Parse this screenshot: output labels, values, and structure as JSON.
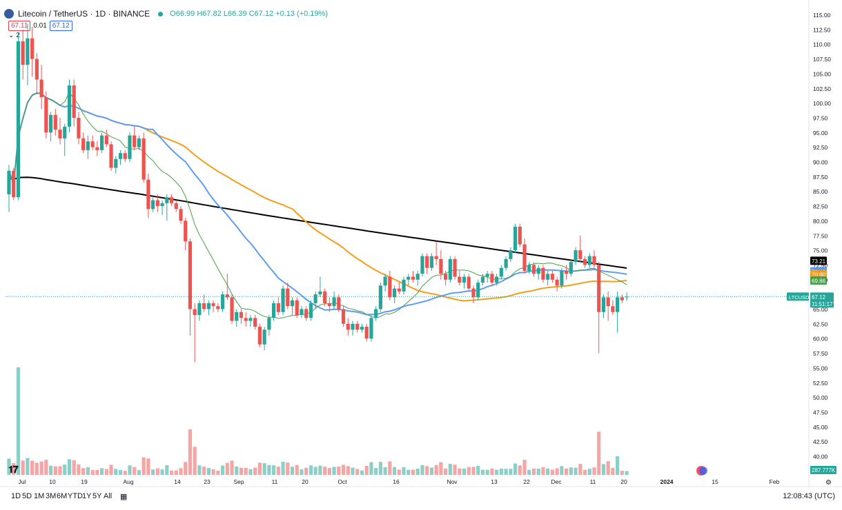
{
  "header": {
    "title": "Litecoin / TetherUS · 1D · BINANCE",
    "ohlc_open": "O66.99",
    "ohlc_high": "H67.82",
    "ohlc_low": "L66.39",
    "ohlc_close": "C67.12",
    "ohlc_change": "+0.13 (+0.19%)",
    "bid": "67.11",
    "spread": "0.01",
    "ask": "67.12",
    "indicators_toggle": "2"
  },
  "price_axis": {
    "ticks": [
      "115.00",
      "112.50",
      "110.00",
      "107.50",
      "105.00",
      "102.50",
      "100.00",
      "97.50",
      "95.00",
      "92.50",
      "90.00",
      "87.50",
      "85.00",
      "82.50",
      "80.00",
      "77.50",
      "75.00",
      "72.50",
      "70.00",
      "67.50",
      "65.00",
      "62.50",
      "60.00",
      "57.50",
      "55.00",
      "52.50",
      "50.00",
      "47.50",
      "45.00",
      "42.50",
      "40.00"
    ],
    "ma_tags": [
      {
        "value": "73.21",
        "color": "#000000"
      },
      {
        "value": "71.41",
        "color": "#5b9cf6"
      },
      {
        "value": "70.90",
        "color": "#f59d16"
      },
      {
        "value": "69.86",
        "color": "#43a047"
      }
    ],
    "symbol_tag": "LTCUSDT",
    "price_tag": "67.12",
    "countdown_tag": "11:51:17",
    "volume_tag": "287.777K"
  },
  "time_axis": {
    "labels": [
      "Jul",
      "10",
      "19",
      "Aug",
      "14",
      "23",
      "Sep",
      "11",
      "20",
      "Oct",
      "16",
      "Nov",
      "13",
      "22",
      "Dec",
      "11",
      "20",
      "2024",
      "15",
      "Feb"
    ]
  },
  "bottom_toolbar": {
    "timeframes": [
      "1D",
      "5D",
      "1M",
      "3M",
      "6M",
      "YTD",
      "1Y",
      "5Y",
      "All"
    ],
    "clock": "12:08:43 (UTC)"
  },
  "colors": {
    "up": "#26a69a",
    "down": "#ef5350",
    "ma_black": "#000000",
    "ma_orange": "#f59d16",
    "ma_blue": "#5b9cf6",
    "ma_green": "#43a047"
  },
  "chart_data": {
    "type": "candlestick",
    "symbol": "LTCUSDT",
    "interval": "1D",
    "ylim": [
      40,
      115
    ],
    "candles": [
      [
        84.5,
        89.5,
        81.5,
        88.5
      ],
      [
        88.5,
        89.0,
        83.5,
        84.0
      ],
      [
        84.0,
        112.0,
        83.5,
        110.5
      ],
      [
        110.5,
        112.5,
        104.0,
        106.5
      ],
      [
        106.5,
        113.5,
        103.0,
        111.0
      ],
      [
        111.0,
        113.0,
        104.5,
        107.5
      ],
      [
        107.5,
        108.5,
        101.5,
        104.0
      ],
      [
        104.0,
        106.5,
        99.0,
        101.0
      ],
      [
        101.0,
        102.0,
        94.0,
        95.0
      ],
      [
        95.0,
        98.5,
        93.5,
        98.0
      ],
      [
        98.0,
        99.0,
        94.5,
        95.5
      ],
      [
        95.5,
        97.5,
        93.0,
        94.0
      ],
      [
        94.0,
        96.5,
        91.0,
        96.0
      ],
      [
        96.0,
        104.0,
        95.0,
        103.0
      ],
      [
        103.0,
        104.0,
        96.0,
        97.5
      ],
      [
        97.5,
        98.5,
        93.0,
        94.0
      ],
      [
        94.0,
        95.0,
        91.5,
        92.0
      ],
      [
        92.0,
        94.5,
        90.5,
        93.5
      ],
      [
        93.5,
        94.5,
        92.0,
        92.5
      ],
      [
        92.5,
        93.5,
        91.0,
        92.0
      ],
      [
        92.0,
        95.0,
        91.5,
        94.5
      ],
      [
        94.5,
        95.5,
        92.5,
        93.0
      ],
      [
        93.0,
        93.5,
        88.5,
        89.0
      ],
      [
        89.0,
        91.0,
        88.0,
        90.5
      ],
      [
        90.5,
        92.0,
        89.5,
        91.5
      ],
      [
        91.5,
        92.0,
        90.0,
        90.5
      ],
      [
        90.5,
        95.0,
        90.0,
        94.5
      ],
      [
        94.5,
        96.0,
        92.0,
        92.5
      ],
      [
        92.5,
        94.5,
        92.0,
        94.0
      ],
      [
        94.0,
        95.0,
        86.5,
        87.0
      ],
      [
        87.0,
        88.0,
        80.5,
        82.0
      ],
      [
        82.0,
        84.0,
        81.5,
        83.5
      ],
      [
        83.5,
        84.5,
        81.5,
        82.5
      ],
      [
        82.5,
        83.5,
        81.0,
        83.0
      ],
      [
        83.0,
        84.5,
        80.0,
        84.0
      ],
      [
        84.0,
        84.5,
        82.5,
        83.0
      ],
      [
        83.0,
        83.5,
        81.5,
        82.0
      ],
      [
        82.0,
        82.5,
        79.5,
        80.0
      ],
      [
        80.0,
        80.5,
        75.0,
        76.5
      ],
      [
        76.5,
        77.0,
        60.5,
        65.0
      ],
      [
        65.0,
        66.0,
        56.0,
        64.0
      ],
      [
        64.0,
        66.5,
        63.0,
        66.0
      ],
      [
        66.0,
        67.5,
        64.5,
        65.0
      ],
      [
        65.0,
        66.5,
        64.0,
        66.0
      ],
      [
        66.0,
        66.5,
        64.5,
        65.5
      ],
      [
        65.5,
        66.0,
        64.5,
        65.0
      ],
      [
        65.0,
        68.0,
        64.5,
        67.5
      ],
      [
        67.5,
        71.0,
        66.5,
        67.0
      ],
      [
        67.0,
        67.5,
        62.5,
        63.0
      ],
      [
        63.0,
        65.0,
        62.0,
        64.5
      ],
      [
        64.5,
        65.0,
        62.5,
        63.5
      ],
      [
        63.5,
        64.5,
        62.0,
        63.0
      ],
      [
        63.0,
        64.0,
        62.0,
        63.5
      ],
      [
        63.5,
        64.0,
        61.5,
        62.0
      ],
      [
        62.0,
        62.5,
        58.5,
        59.0
      ],
      [
        59.0,
        62.0,
        58.0,
        61.5
      ],
      [
        61.5,
        64.0,
        60.5,
        63.5
      ],
      [
        63.5,
        66.5,
        63.0,
        66.0
      ],
      [
        66.0,
        67.0,
        64.0,
        64.5
      ],
      [
        64.5,
        69.0,
        64.0,
        68.5
      ],
      [
        68.5,
        69.5,
        65.0,
        65.5
      ],
      [
        65.5,
        67.0,
        64.0,
        66.5
      ],
      [
        66.5,
        67.0,
        63.5,
        64.0
      ],
      [
        64.0,
        65.5,
        63.5,
        65.0
      ],
      [
        65.0,
        65.5,
        63.0,
        63.5
      ],
      [
        63.5,
        66.5,
        63.0,
        66.0
      ],
      [
        66.0,
        68.0,
        65.0,
        67.5
      ],
      [
        67.5,
        70.5,
        67.0,
        68.0
      ],
      [
        68.0,
        68.5,
        65.5,
        66.0
      ],
      [
        66.0,
        67.0,
        64.5,
        65.5
      ],
      [
        65.5,
        68.0,
        65.0,
        67.0
      ],
      [
        67.0,
        67.5,
        64.5,
        65.0
      ],
      [
        65.0,
        65.5,
        62.0,
        62.5
      ],
      [
        62.5,
        63.5,
        60.5,
        61.5
      ],
      [
        61.5,
        63.0,
        60.5,
        62.5
      ],
      [
        62.5,
        63.0,
        61.0,
        61.5
      ],
      [
        61.5,
        62.5,
        61.0,
        62.0
      ],
      [
        62.0,
        62.5,
        59.5,
        60.0
      ],
      [
        60.0,
        64.0,
        59.5,
        63.5
      ],
      [
        63.5,
        65.5,
        63.0,
        65.0
      ],
      [
        65.0,
        69.5,
        64.5,
        69.0
      ],
      [
        69.0,
        71.0,
        68.0,
        70.5
      ],
      [
        70.5,
        71.5,
        66.5,
        67.0
      ],
      [
        67.0,
        69.0,
        66.0,
        68.5
      ],
      [
        68.5,
        69.5,
        67.5,
        68.0
      ],
      [
        68.0,
        70.5,
        67.5,
        70.0
      ],
      [
        70.0,
        71.0,
        69.0,
        70.5
      ],
      [
        70.5,
        71.5,
        69.5,
        70.0
      ],
      [
        70.0,
        71.5,
        69.0,
        71.0
      ],
      [
        71.0,
        74.5,
        70.5,
        74.0
      ],
      [
        74.0,
        74.5,
        71.0,
        72.0
      ],
      [
        72.0,
        74.5,
        71.5,
        74.0
      ],
      [
        74.0,
        76.5,
        72.5,
        73.5
      ],
      [
        73.5,
        75.0,
        70.0,
        71.0
      ],
      [
        71.0,
        71.5,
        69.0,
        70.0
      ],
      [
        70.0,
        74.0,
        69.5,
        73.5
      ],
      [
        73.5,
        74.0,
        70.0,
        70.5
      ],
      [
        70.5,
        71.5,
        69.0,
        69.5
      ],
      [
        69.5,
        71.0,
        68.5,
        70.5
      ],
      [
        70.5,
        71.0,
        68.0,
        68.5
      ],
      [
        68.5,
        69.0,
        66.0,
        67.0
      ],
      [
        67.0,
        70.0,
        66.5,
        69.5
      ],
      [
        69.5,
        71.0,
        69.0,
        70.5
      ],
      [
        70.5,
        71.5,
        69.5,
        71.0
      ],
      [
        71.0,
        71.5,
        69.0,
        69.5
      ],
      [
        69.5,
        71.0,
        69.0,
        70.5
      ],
      [
        70.5,
        72.5,
        70.0,
        72.0
      ],
      [
        72.0,
        74.0,
        71.5,
        73.5
      ],
      [
        73.5,
        75.5,
        73.0,
        75.0
      ],
      [
        75.0,
        79.5,
        74.5,
        79.0
      ],
      [
        79.0,
        79.5,
        75.5,
        76.0
      ],
      [
        76.0,
        77.0,
        71.0,
        71.5
      ],
      [
        71.5,
        73.0,
        71.0,
        72.5
      ],
      [
        72.5,
        73.0,
        70.5,
        71.0
      ],
      [
        71.0,
        72.5,
        70.0,
        72.0
      ],
      [
        72.0,
        72.5,
        69.5,
        70.0
      ],
      [
        70.0,
        71.5,
        69.0,
        71.0
      ],
      [
        71.0,
        71.5,
        69.5,
        70.0
      ],
      [
        70.0,
        70.5,
        68.0,
        69.0
      ],
      [
        69.0,
        72.0,
        68.5,
        71.5
      ],
      [
        71.5,
        72.5,
        70.0,
        71.0
      ],
      [
        71.0,
        73.5,
        70.5,
        73.0
      ],
      [
        73.0,
        75.5,
        72.5,
        75.0
      ],
      [
        75.0,
        77.5,
        73.0,
        73.5
      ],
      [
        73.5,
        74.0,
        72.0,
        72.5
      ],
      [
        72.5,
        74.5,
        72.0,
        74.0
      ],
      [
        74.0,
        75.0,
        72.0,
        72.5
      ],
      [
        72.5,
        73.0,
        57.5,
        64.5
      ],
      [
        64.5,
        67.5,
        63.5,
        67.0
      ],
      [
        67.0,
        68.0,
        63.0,
        65.5
      ],
      [
        65.5,
        66.5,
        64.0,
        64.5
      ],
      [
        64.5,
        68.0,
        61.0,
        67.0
      ],
      [
        67.0,
        67.5,
        66.0,
        66.5
      ],
      [
        66.99,
        67.82,
        66.39,
        67.12
      ]
    ],
    "volume_ylim": [
      38.5,
      57
    ]
  }
}
